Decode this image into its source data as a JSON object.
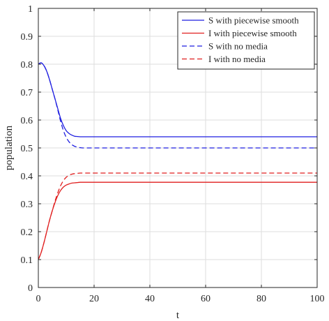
{
  "chart_data": {
    "type": "line",
    "title": "",
    "xlabel": "t",
    "ylabel": "population",
    "xlim": [
      0,
      100
    ],
    "ylim": [
      0,
      1
    ],
    "xticks": [
      "0",
      "20",
      "40",
      "60",
      "80",
      "100"
    ],
    "yticks": [
      "0",
      "0.1",
      "0.2",
      "0.3",
      "0.4",
      "0.5",
      "0.6",
      "0.7",
      "0.8",
      "0.9",
      "1"
    ],
    "grid": true,
    "legend_position": "top-right",
    "series": [
      {
        "name": "S with piecewise smooth",
        "color": "#1f1fe0",
        "dash": "solid",
        "x": [
          0,
          1,
          2,
          3,
          4,
          5,
          6,
          7,
          8,
          9,
          10,
          11,
          12,
          13,
          14,
          15,
          16,
          18,
          20,
          25,
          30,
          40,
          50,
          60,
          70,
          80,
          90,
          100
        ],
        "y": [
          0.8,
          0.805,
          0.795,
          0.775,
          0.745,
          0.71,
          0.675,
          0.64,
          0.605,
          0.58,
          0.562,
          0.552,
          0.546,
          0.542,
          0.541,
          0.54,
          0.54,
          0.54,
          0.54,
          0.54,
          0.54,
          0.54,
          0.54,
          0.54,
          0.54,
          0.54,
          0.54,
          0.54
        ]
      },
      {
        "name": "I with piecewise smooth",
        "color": "#e01f1f",
        "dash": "solid",
        "x": [
          0,
          1,
          2,
          3,
          4,
          5,
          6,
          7,
          8,
          9,
          10,
          11,
          12,
          13,
          14,
          15,
          16,
          18,
          20,
          25,
          30,
          40,
          50,
          60,
          70,
          80,
          90,
          100
        ],
        "y": [
          0.1,
          0.125,
          0.16,
          0.2,
          0.24,
          0.275,
          0.305,
          0.33,
          0.348,
          0.36,
          0.367,
          0.371,
          0.374,
          0.375,
          0.376,
          0.377,
          0.377,
          0.377,
          0.377,
          0.377,
          0.377,
          0.377,
          0.377,
          0.377,
          0.377,
          0.377,
          0.377,
          0.377
        ]
      },
      {
        "name": "S with no media",
        "color": "#1f1fe0",
        "dash": "dashed",
        "x": [
          0,
          1,
          2,
          3,
          4,
          5,
          6,
          7,
          8,
          9,
          10,
          11,
          12,
          13,
          14,
          15,
          16,
          18,
          20,
          25,
          30,
          40,
          50,
          60,
          70,
          80,
          90,
          100
        ],
        "y": [
          0.8,
          0.805,
          0.795,
          0.775,
          0.745,
          0.71,
          0.675,
          0.635,
          0.595,
          0.562,
          0.538,
          0.522,
          0.512,
          0.506,
          0.503,
          0.501,
          0.5,
          0.5,
          0.5,
          0.5,
          0.5,
          0.5,
          0.5,
          0.5,
          0.5,
          0.5,
          0.5,
          0.5
        ]
      },
      {
        "name": "I with no media",
        "color": "#e01f1f",
        "dash": "dashed",
        "x": [
          0,
          1,
          2,
          3,
          4,
          5,
          6,
          7,
          8,
          9,
          10,
          11,
          12,
          13,
          14,
          15,
          16,
          18,
          20,
          25,
          30,
          40,
          50,
          60,
          70,
          80,
          90,
          100
        ],
        "y": [
          0.1,
          0.125,
          0.16,
          0.2,
          0.24,
          0.275,
          0.31,
          0.34,
          0.365,
          0.383,
          0.395,
          0.402,
          0.406,
          0.408,
          0.409,
          0.41,
          0.41,
          0.41,
          0.41,
          0.41,
          0.41,
          0.41,
          0.41,
          0.41,
          0.41,
          0.41,
          0.41,
          0.41
        ]
      }
    ]
  }
}
